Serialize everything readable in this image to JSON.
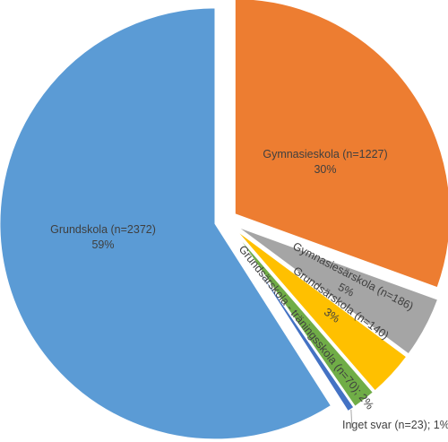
{
  "chart_data": {
    "type": "pie",
    "title": "",
    "slices": [
      {
        "label": "Gymnasieskola (n=1227)",
        "pct_label": "30%",
        "n": 1227,
        "percent": 30,
        "color": "#ED7D31"
      },
      {
        "label": "Gymnasiesärskola (n=186)",
        "pct_label": "5%",
        "n": 186,
        "percent": 5,
        "color": "#A5A5A5"
      },
      {
        "label": "Grundsärskola (n=140)",
        "pct_label": "3%",
        "n": 140,
        "percent": 3,
        "color": "#FFC000"
      },
      {
        "label": "Grundsärskola - träningsskola (n=70); 2%",
        "n": 70,
        "percent": 2,
        "color": "#70AD47"
      },
      {
        "label": "Inget svar (n=23); 1%",
        "n": 23,
        "percent": 1,
        "color": "#4472C4"
      },
      {
        "label": "Grundskola (n=2372)",
        "pct_label": "59%",
        "n": 2372,
        "percent": 59,
        "color": "#5B9BD5"
      }
    ],
    "legend": "none",
    "exploded": true
  }
}
